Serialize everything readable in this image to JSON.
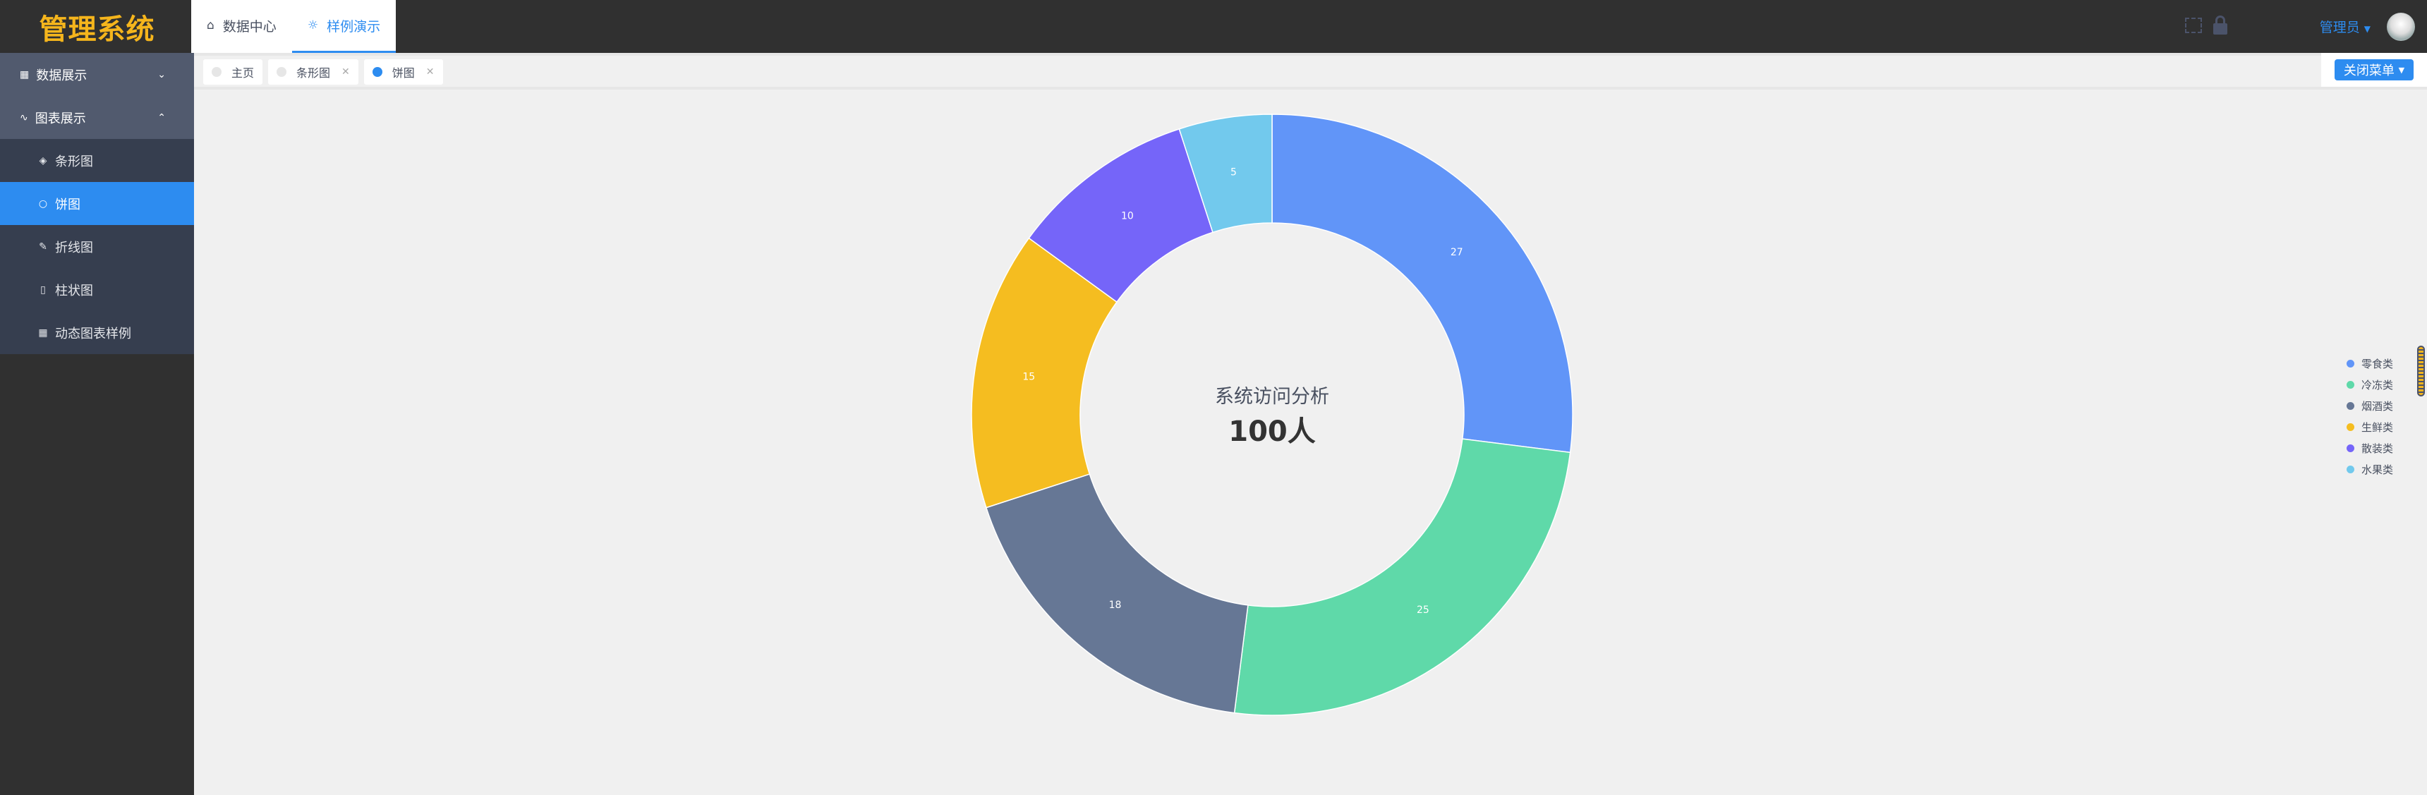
{
  "header": {
    "logo": "管理系统",
    "nav": [
      {
        "label": "数据中心",
        "icon": "home-icon"
      },
      {
        "label": "样例演示",
        "icon": "bulb-icon"
      }
    ],
    "user": "管理员"
  },
  "sidebar": {
    "groups": [
      {
        "label": "数据展示",
        "icon": "grid-icon"
      },
      {
        "label": "图表展示",
        "icon": "pulse-icon"
      }
    ],
    "items": [
      {
        "label": "条形图",
        "icon": "tag-icon"
      },
      {
        "label": "饼图",
        "icon": "circle-icon"
      },
      {
        "label": "折线图",
        "icon": "pen-icon"
      },
      {
        "label": "柱状图",
        "icon": "phone-icon"
      },
      {
        "label": "动态图表样例",
        "icon": "grid-icon"
      }
    ]
  },
  "tags": [
    {
      "label": "主页"
    },
    {
      "label": "条形图"
    },
    {
      "label": "饼图"
    }
  ],
  "close_menu": "关闭菜单",
  "chart_data": {
    "type": "pie",
    "donut": true,
    "title": "系统访问分析",
    "center_value": "100人",
    "categories": [
      "零食类",
      "冷冻类",
      "烟酒类",
      "生鲜类",
      "散装类",
      "水果类"
    ],
    "values": [
      27,
      25,
      18,
      15,
      10,
      5
    ],
    "colors": [
      "#6195f8",
      "#5fd9a9",
      "#667795",
      "#f5bd20",
      "#7565f9",
      "#72c9ed"
    ],
    "legend": "right"
  }
}
